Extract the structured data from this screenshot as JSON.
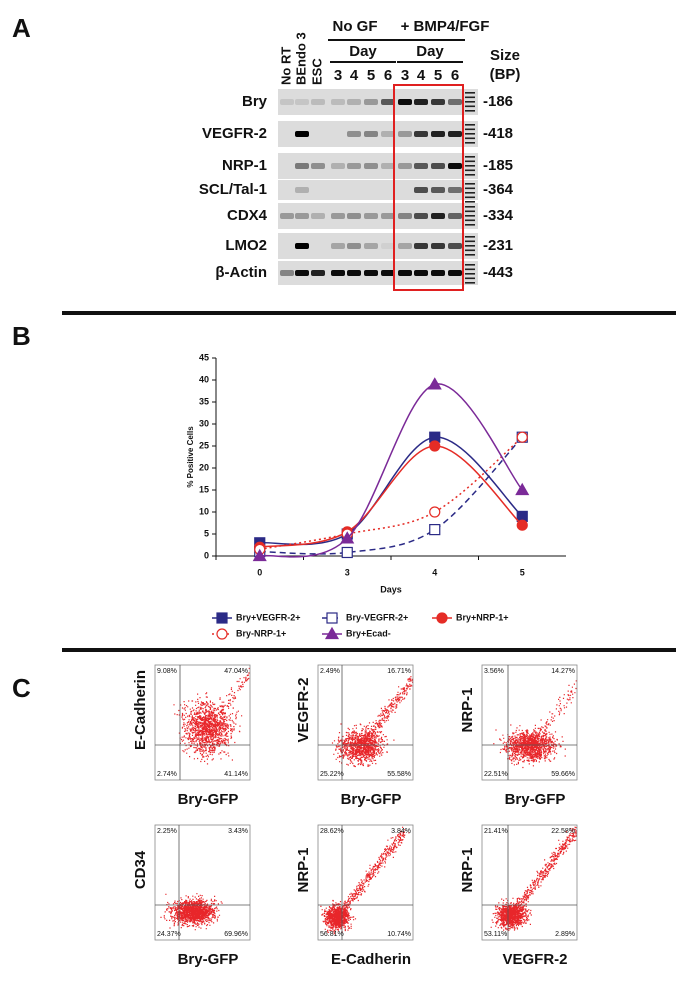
{
  "panel_a": {
    "label": "A",
    "lane_labels": [
      "No RT",
      "BEndo 3",
      "ESC"
    ],
    "groups": [
      {
        "name": "No GF",
        "day_label": "Day",
        "days": [
          "3",
          "4",
          "5",
          "6"
        ]
      },
      {
        "name": "+ BMP4/FGF",
        "day_label": "Day",
        "days": [
          "3",
          "4",
          "5",
          "6"
        ]
      }
    ],
    "size_header": [
      "Size",
      "(BP)"
    ],
    "rows": [
      {
        "gene": "Bry",
        "size": "-186"
      },
      {
        "gene": "VEGFR-2",
        "size": "-418"
      },
      {
        "gene": "NRP-1",
        "size": "-185"
      },
      {
        "gene": "SCL/Tal-1",
        "size": "-364"
      },
      {
        "gene": "CDX4",
        "size": "-334"
      },
      {
        "gene": "LMO2",
        "size": "-231"
      },
      {
        "gene": "β-Actin",
        "size": "-443"
      }
    ]
  },
  "panel_b": {
    "label": "B",
    "chart_data": {
      "type": "line",
      "y_label": "% Positive Cells",
      "x_label": "Days",
      "categories": [
        "0",
        "3",
        "4",
        "5"
      ],
      "ylim": [
        0,
        45
      ],
      "yticks": [
        0,
        5,
        10,
        15,
        20,
        25,
        30,
        35,
        40,
        45
      ],
      "series": [
        {
          "name": "Bry+VEGFR-2+",
          "color": "#2b2a86",
          "marker": "square",
          "filled": true,
          "dash": "solid",
          "values": [
            3,
            5,
            27,
            9
          ]
        },
        {
          "name": "Bry-VEGFR-2+",
          "color": "#2b2a86",
          "marker": "square",
          "filled": false,
          "dash": "dashed",
          "values": [
            1,
            0.8,
            6,
            27
          ]
        },
        {
          "name": "Bry+NRP-1+",
          "color": "#e52c26",
          "marker": "circle",
          "filled": true,
          "dash": "solid",
          "values": [
            2,
            5.5,
            25,
            7
          ]
        },
        {
          "name": "Bry-NRP-1+",
          "color": "#e52c26",
          "marker": "circle",
          "filled": false,
          "dash": "dotted",
          "values": [
            1.5,
            5,
            10,
            27
          ]
        },
        {
          "name": "Bry+Ecad-",
          "color": "#7b2a98",
          "marker": "triangle",
          "filled": true,
          "dash": "solid",
          "values": [
            0,
            4,
            39,
            15
          ]
        }
      ]
    }
  },
  "panel_c": {
    "label": "C",
    "plots": [
      {
        "y_label": "E-Cadherin",
        "x_label": "Bry-GFP",
        "quadrants": [
          "9.08%",
          "47.04%",
          "2.74%",
          "41.14%"
        ]
      },
      {
        "y_label": "VEGFR-2",
        "x_label": "Bry-GFP",
        "quadrants": [
          "2.49%",
          "16.71%",
          "25.22%",
          "55.58%"
        ]
      },
      {
        "y_label": "NRP-1",
        "x_label": "Bry-GFP",
        "quadrants": [
          "3.56%",
          "14.27%",
          "22.51%",
          "59.66%"
        ]
      },
      {
        "y_label": "CD34",
        "x_label": "Bry-GFP",
        "quadrants": [
          "2.25%",
          "3.43%",
          "24.37%",
          "69.96%"
        ]
      },
      {
        "y_label": "NRP-1",
        "x_label": "E-Cadherin",
        "quadrants": [
          "28.62%",
          "3.84%",
          "56.81%",
          "10.74%"
        ]
      },
      {
        "y_label": "NRP-1",
        "x_label": "VEGFR-2",
        "quadrants": [
          "21.41%",
          "22.58%",
          "53.11%",
          "2.89%"
        ]
      }
    ]
  }
}
